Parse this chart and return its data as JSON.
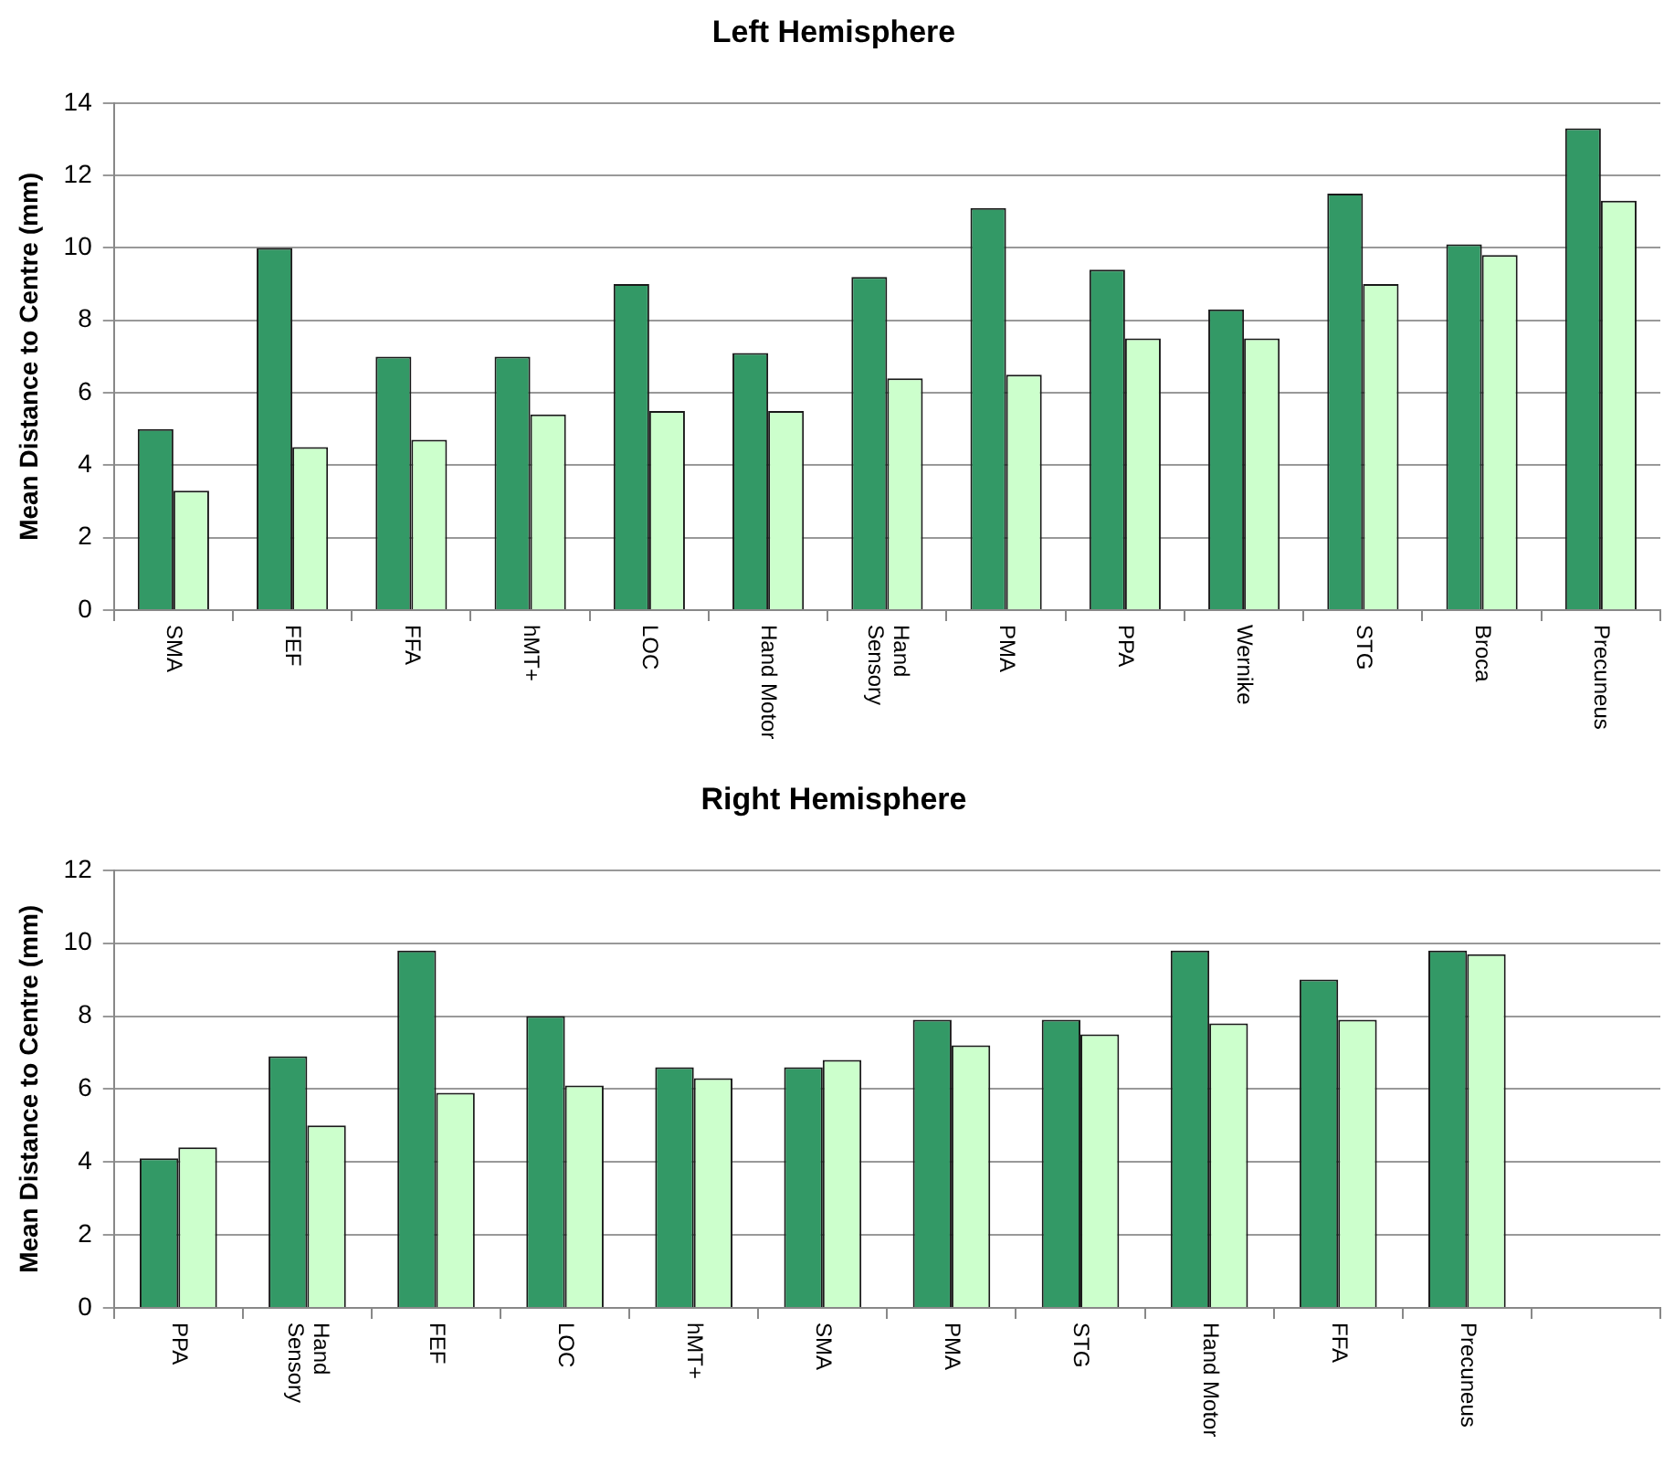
{
  "chart_data": [
    {
      "type": "bar",
      "title": "Left Hemisphere",
      "ylabel": "Mean Distance to Centre (mm)",
      "categories": [
        "SMA",
        "FEF",
        "FFA",
        "hMT+",
        "LOC",
        "Hand Motor",
        "Hand\nSensory",
        "PMA",
        "PPA",
        "Wernike",
        "STG",
        "Broca",
        "Precuneus"
      ],
      "series": [
        {
          "color": "#339966",
          "values": [
            5.0,
            10.0,
            7.0,
            7.0,
            9.0,
            7.1,
            9.2,
            11.1,
            9.4,
            8.3,
            11.5,
            10.1,
            13.3
          ]
        },
        {
          "color": "#ccffcc",
          "values": [
            3.3,
            4.5,
            4.7,
            5.4,
            5.5,
            5.5,
            6.4,
            6.5,
            7.5,
            7.5,
            9.0,
            9.8,
            11.3
          ]
        }
      ],
      "ylim": [
        0,
        14
      ],
      "yticks": [
        0,
        2,
        4,
        6,
        8,
        10,
        12,
        14
      ],
      "grid": "y",
      "legend": false
    },
    {
      "type": "bar",
      "title": "Right Hemisphere",
      "ylabel": "Mean Distance to Centre (mm)",
      "categories": [
        "PPA",
        "Hand\nSensory",
        "FEF",
        "LOC",
        "hMT+",
        "SMA",
        "PMA",
        "STG",
        "Hand Motor",
        "FFA",
        "Precuneus",
        null
      ],
      "series": [
        {
          "color": "#339966",
          "values": [
            4.1,
            6.9,
            9.8,
            8.0,
            6.6,
            6.6,
            7.9,
            7.9,
            9.8,
            9.0,
            9.8,
            null
          ]
        },
        {
          "color": "#ccffcc",
          "values": [
            4.4,
            5.0,
            5.9,
            6.1,
            6.3,
            6.8,
            7.2,
            7.5,
            7.8,
            7.9,
            9.7,
            null
          ]
        }
      ],
      "ylim": [
        0,
        12
      ],
      "yticks": [
        0,
        2,
        4,
        6,
        8,
        10,
        12
      ],
      "grid": "y",
      "legend": false
    }
  ]
}
